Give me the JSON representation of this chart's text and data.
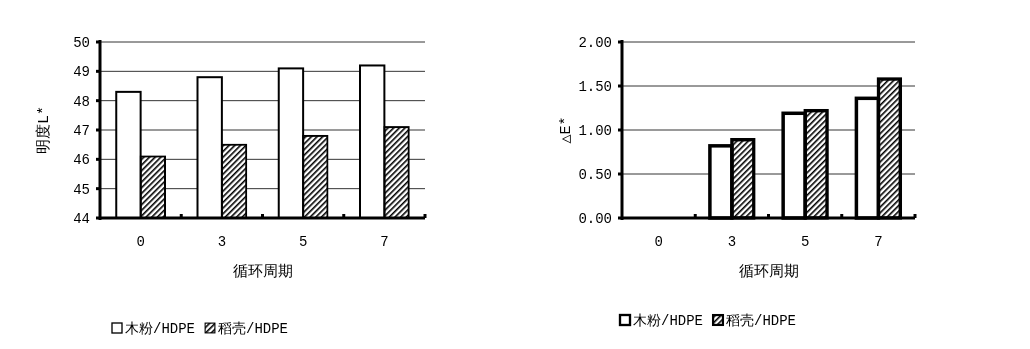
{
  "chart_data": [
    {
      "type": "bar",
      "xlabel": "循环周期",
      "ylabel": "明度L*",
      "categories": [
        "0",
        "3",
        "5",
        "7"
      ],
      "series": [
        {
          "name": "木粉/HDPE",
          "color": "#ffffff",
          "values": [
            48.3,
            48.8,
            49.1,
            49.2
          ]
        },
        {
          "name": "稻壳/HDPE",
          "color": "#000000",
          "values": [
            46.1,
            46.5,
            46.8,
            47.1
          ]
        }
      ],
      "ylim": [
        44,
        50
      ],
      "yticks": [
        44,
        45,
        46,
        47,
        48,
        49,
        50
      ],
      "grid": "y",
      "legend": "bottom left"
    },
    {
      "type": "bar",
      "xlabel": "循环周期",
      "ylabel": "△E*",
      "categories": [
        "0",
        "3",
        "5",
        "7"
      ],
      "series": [
        {
          "name": "木粉/HDPE",
          "color": "#ffffff",
          "values": [
            0,
            0.82,
            1.19,
            1.36
          ]
        },
        {
          "name": "稻壳/HDPE",
          "color": "#000000",
          "values": [
            0,
            0.89,
            1.22,
            1.58
          ]
        }
      ],
      "ylim": [
        0,
        2
      ],
      "yticks": [
        {
          "value": 0,
          "label": "0.00"
        },
        {
          "value": 0.5,
          "label": "0.50"
        },
        {
          "value": 1,
          "label": "1.00"
        },
        {
          "value": 1.5,
          "label": "1.50"
        },
        {
          "value": 2,
          "label": "2.00"
        }
      ],
      "grid": "y",
      "legend": "bottom left"
    }
  ]
}
